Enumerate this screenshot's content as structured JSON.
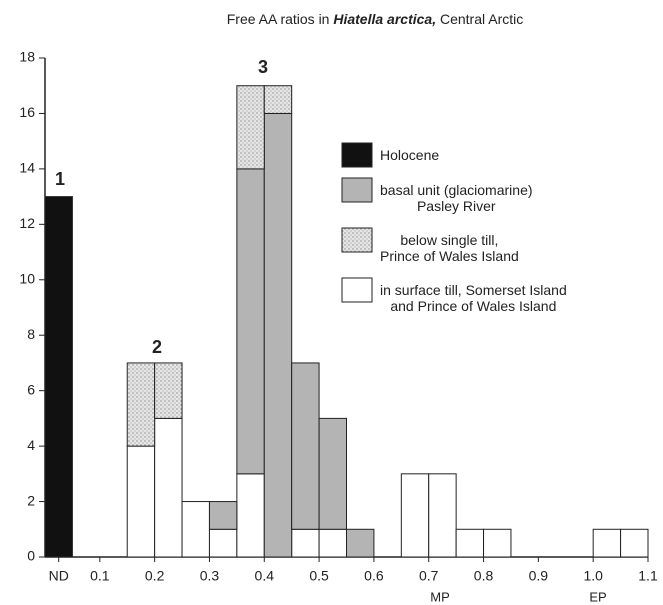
{
  "chart_data": {
    "type": "histogram",
    "title": [
      "Free AA ratios in ",
      "Hiatella arctica,",
      " Central Arctic"
    ],
    "bins": [
      0,
      0.05,
      0.1,
      0.15,
      0.2,
      0.25,
      0.3,
      0.35,
      0.4,
      0.45,
      0.5,
      0.55,
      0.6,
      0.65,
      0.7,
      0.75,
      0.8,
      0.85,
      0.9,
      0.95,
      1.0,
      1.05,
      1.1
    ],
    "series": [
      {
        "name": "Holocene",
        "color": "#111111",
        "values": [
          13,
          0,
          0,
          0,
          0,
          0,
          0,
          0,
          0,
          0,
          0,
          0,
          0,
          0,
          0,
          0,
          0,
          0,
          0,
          0,
          0,
          0
        ]
      },
      {
        "name": "in surface till, Somerset Island\nand Prince of Wales Island",
        "color": "#ffffff",
        "values": [
          0,
          0,
          0,
          4,
          5,
          2,
          1,
          3,
          0,
          1,
          1,
          0,
          0,
          3,
          3,
          1,
          1,
          0,
          0,
          0,
          1,
          1
        ]
      },
      {
        "name": "basal unit (glaciomarine)\nPasley River",
        "color": "#b4b4b4",
        "values": [
          0,
          0,
          0,
          0,
          0,
          0,
          1,
          11,
          16,
          6,
          4,
          1,
          0,
          0,
          0,
          0,
          0,
          0,
          0,
          0,
          0,
          0
        ]
      },
      {
        "name": "below single till,\nPrince of Wales Island",
        "color": "#dedede",
        "values": [
          0,
          0,
          0,
          3,
          2,
          0,
          0,
          3,
          1,
          0,
          0,
          0,
          0,
          0,
          0,
          0,
          0,
          0,
          0,
          0,
          0,
          0
        ]
      }
    ],
    "legend_order": [
      0,
      2,
      3,
      1
    ],
    "stacked": true,
    "xlim": [
      0,
      1.1
    ],
    "xticks": [
      {
        "value": 0.025,
        "label": "ND"
      },
      0.1,
      0.2,
      0.3,
      0.4,
      0.5,
      0.6,
      0.7,
      0.8,
      0.9,
      {
        "value": 1,
        "label": "1.0"
      },
      1.1
    ],
    "ylim": [
      0,
      18
    ],
    "yticks": [
      0,
      2,
      4,
      6,
      8,
      10,
      12,
      14,
      16,
      18
    ],
    "grid": false,
    "annotations": [
      "1",
      "2",
      "3",
      "MP",
      "EP"
    ]
  }
}
